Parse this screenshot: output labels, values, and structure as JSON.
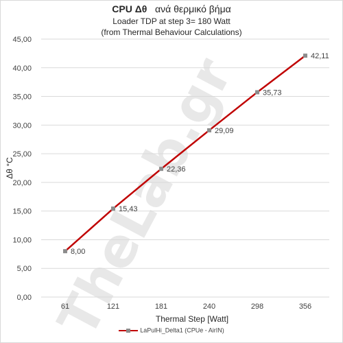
{
  "chart_data": {
    "type": "line",
    "title": {
      "bold": "CPU Δθ",
      "rest": "ανά θερμικό βήμα",
      "subtitle1": "Loader TDP at step 3= 180 Watt",
      "subtitle2": "(from Thermal Behaviour Calculations)"
    },
    "xlabel": "Thermal Step [Watt]",
    "ylabel": "Δθ °C",
    "categories": [
      "61",
      "121",
      "181",
      "240",
      "298",
      "356"
    ],
    "series": [
      {
        "name": "LaPulHi_Delta1 (CPUe - AirIN)",
        "values": [
          8.0,
          15.43,
          22.36,
          29.09,
          35.73,
          42.11
        ],
        "labels": [
          "8,00",
          "15,43",
          "22,36",
          "29,09",
          "35,73",
          "42,11"
        ],
        "color": "#c00000",
        "marker_color": "#8c8c8c"
      }
    ],
    "ylim": [
      0,
      45
    ],
    "yticks": [
      "0,00",
      "5,00",
      "10,00",
      "15,00",
      "20,00",
      "25,00",
      "30,00",
      "35,00",
      "40,00",
      "45,00"
    ],
    "grid": true,
    "legend_position": "bottom",
    "watermark": "TheLab.gr"
  }
}
